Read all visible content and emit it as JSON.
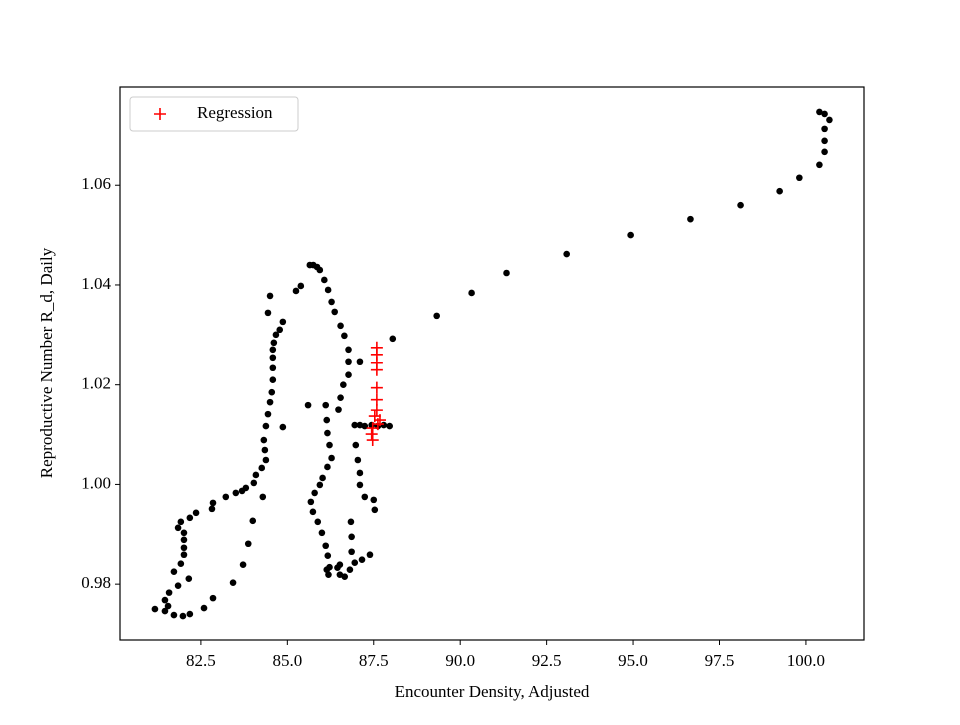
{
  "chart_data": {
    "type": "scatter",
    "xlabel": "Encounter Density, Adjusted",
    "ylabel": "Reproductive Number R_d, Daily",
    "xlim": [
      80.16,
      101.68
    ],
    "ylim": [
      0.9688,
      1.0797
    ],
    "xticks": [
      82.5,
      {
        "value": 85,
        "label": "85.0"
      },
      87.5,
      {
        "value": 90,
        "label": "90.0"
      },
      92.5,
      {
        "value": 95,
        "label": "95.0"
      },
      97.5,
      {
        "value": 100,
        "label": "100.0"
      }
    ],
    "yticks": [
      0.98,
      {
        "value": 1,
        "label": "1.00"
      },
      1.02,
      1.04,
      1.06
    ],
    "legend": "upper left",
    "series": [
      {
        "color": "#000000",
        "marker": "dot",
        "x": [
          100.39,
          100.54,
          100.68,
          100.54,
          100.54,
          100.54,
          100.39,
          99.81,
          99.24,
          98.11,
          96.66,
          94.93,
          93.08,
          91.34,
          90.33,
          89.32,
          88.05,
          86.95,
          87.1,
          87.24,
          87.44,
          87.62,
          87.79,
          87.96,
          85.6,
          84.87,
          84.5,
          84.44,
          84.87,
          84.78,
          84.67,
          84.61,
          84.58,
          84.58,
          84.58,
          84.58,
          84.55,
          84.5,
          84.44,
          84.38,
          84.32,
          84.35,
          84.38,
          84.26,
          84.09,
          84.03,
          83.8,
          83.69,
          83.51,
          83.22,
          82.85,
          82.82,
          82.36,
          82.18,
          81.92,
          81.84,
          82.01,
          82.01,
          82.01,
          82.01,
          81.92,
          81.72,
          81.84,
          81.58,
          81.46,
          81.55,
          81.17,
          81.46,
          81.72,
          81.98,
          82.18,
          82.59,
          82.85,
          82.15,
          83.43,
          83.72,
          83.87,
          84.0,
          84.29,
          85.25,
          85.39,
          85.65,
          85.75,
          85.86,
          85.94,
          86.07,
          86.18,
          86.28,
          86.37,
          86.54,
          86.65,
          86.77,
          86.77,
          86.77,
          86.62,
          86.54,
          86.48,
          86.11,
          86.14,
          86.16,
          86.22,
          86.28,
          86.16,
          86.02,
          85.94,
          85.79,
          85.68,
          85.74,
          85.88,
          86.0,
          86.11,
          86.17,
          86.22,
          86.52,
          86.66,
          86.81,
          86.86,
          86.86,
          86.84,
          86.98,
          87.04,
          87.1,
          87.1,
          87.24,
          87.5,
          87.53,
          87.39,
          87.16,
          86.95,
          86.52,
          86.14,
          86.19,
          86.45,
          87.1
        ],
        "values": [
          1.0747,
          1.0743,
          1.0731,
          1.0713,
          1.0689,
          1.0667,
          1.0641,
          1.0615,
          1.0588,
          1.056,
          1.0532,
          1.05,
          1.0462,
          1.0424,
          1.0384,
          1.0338,
          1.0292,
          1.0119,
          1.0119,
          1.0117,
          1.0119,
          1.0117,
          1.0119,
          1.0117,
          1.0159,
          1.0115,
          1.0378,
          1.0344,
          1.0326,
          1.031,
          1.03,
          1.0284,
          1.027,
          1.0254,
          1.0234,
          1.021,
          1.0185,
          1.0165,
          1.0141,
          1.0117,
          1.0089,
          1.0069,
          1.0049,
          1.0033,
          1.0019,
          1.0003,
          0.9993,
          0.9987,
          0.9983,
          0.9975,
          0.9963,
          0.9951,
          0.9943,
          0.9933,
          0.9925,
          0.9913,
          0.9903,
          0.9889,
          0.9873,
          0.9859,
          0.9841,
          0.9825,
          0.9797,
          0.9783,
          0.9768,
          0.9756,
          0.975,
          0.9746,
          0.9738,
          0.9736,
          0.974,
          0.9752,
          0.9772,
          0.9811,
          0.9803,
          0.9839,
          0.9881,
          0.9927,
          0.9975,
          1.0388,
          1.0398,
          1.044,
          1.044,
          1.0436,
          1.043,
          1.041,
          1.039,
          1.0366,
          1.0346,
          1.0318,
          1.0298,
          1.027,
          1.0246,
          1.022,
          1.02,
          1.0174,
          1.015,
          1.0159,
          1.0129,
          1.0103,
          1.0079,
          1.0053,
          1.0035,
          1.0013,
          0.9999,
          0.9983,
          0.9965,
          0.9945,
          0.9925,
          0.9903,
          0.9877,
          0.9857,
          0.9834,
          0.9819,
          0.9815,
          0.9829,
          0.9865,
          0.9895,
          0.9925,
          1.0079,
          1.0049,
          1.0023,
          0.9999,
          0.9975,
          0.9969,
          0.9949,
          0.9859,
          0.9849,
          0.9843,
          0.9839,
          0.9829,
          0.9819,
          0.9833,
          1.0246
        ]
      },
      {
        "name": "Regression",
        "color": "#ff0000",
        "marker": "plus",
        "x": [
          87.59,
          87.59,
          87.59,
          87.59,
          87.59,
          87.59,
          87.59,
          87.53,
          87.68,
          87.47,
          87.44,
          87.47,
          87.62
        ],
        "values": [
          1.0274,
          1.026,
          1.0244,
          1.023,
          1.0194,
          1.017,
          1.0149,
          1.0137,
          1.0129,
          1.0113,
          1.0101,
          1.0089,
          1.0121
        ]
      }
    ]
  }
}
